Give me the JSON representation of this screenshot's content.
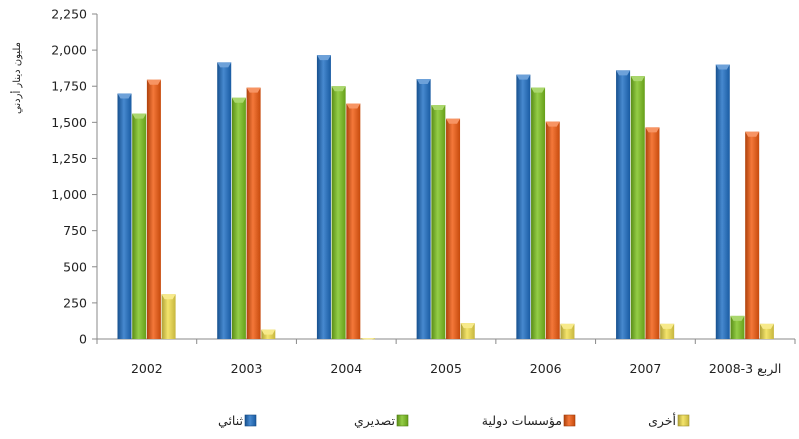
{
  "chart_data": {
    "type": "bar",
    "title": "",
    "ylabel": "مليون دينار أردني",
    "xlabel": "",
    "ylim": [
      0,
      2250
    ],
    "yticks": [
      0,
      250,
      500,
      750,
      1000,
      1250,
      1500,
      1750,
      2000,
      2250
    ],
    "ytick_labels": [
      "0",
      "250",
      "500",
      "750",
      "1,000",
      "1,250",
      "1,500",
      "1,750",
      "2,000",
      "2,250"
    ],
    "categories": [
      "2002",
      "2003",
      "2004",
      "2005",
      "2006",
      "2007",
      "الربع 3-2008"
    ],
    "grid": false,
    "legend_position": "bottom",
    "series": [
      {
        "name": "ثنائي",
        "color": "#1f6fc5",
        "values": [
          1700,
          1915,
          1965,
          1800,
          1830,
          1860,
          1900
        ]
      },
      {
        "name": "تصديري",
        "color": "#7cc21e",
        "values": [
          1560,
          1670,
          1750,
          1620,
          1740,
          1820,
          160
        ]
      },
      {
        "name": "مؤسسات دولية",
        "color": "#f25a0f",
        "values": [
          1795,
          1740,
          1630,
          1525,
          1505,
          1465,
          1435
        ]
      },
      {
        "name": "أخرى",
        "color": "#f2de4c",
        "values": [
          310,
          65,
          5,
          110,
          105,
          105,
          105
        ]
      }
    ]
  }
}
